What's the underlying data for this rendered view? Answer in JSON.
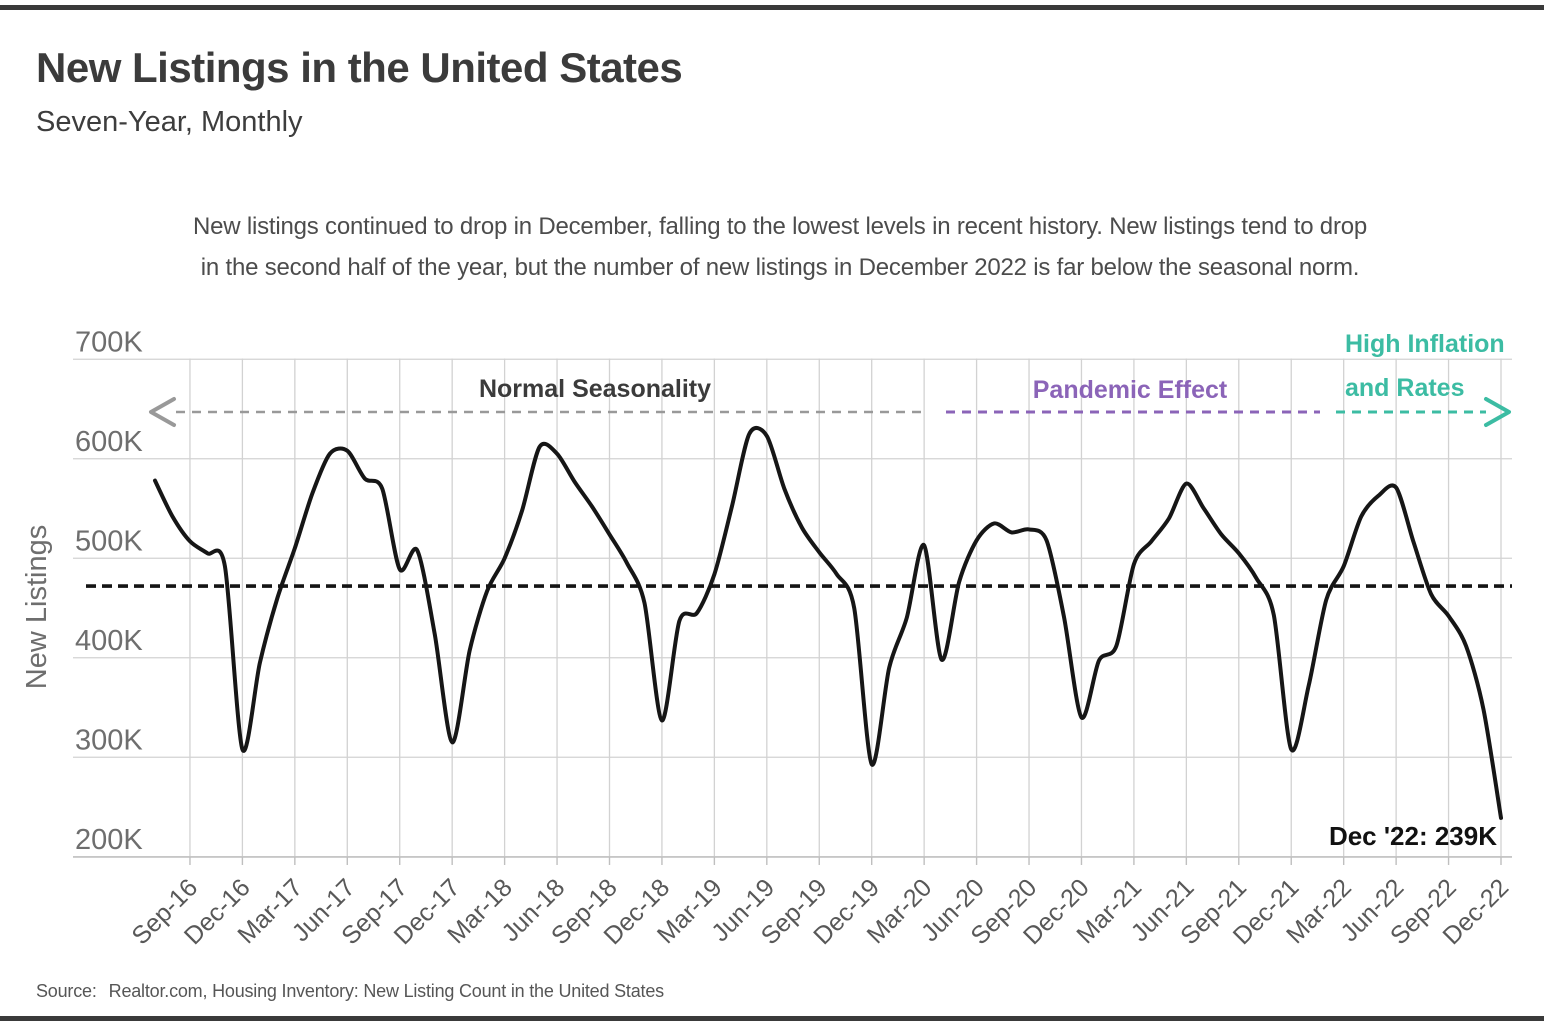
{
  "header": {
    "title": "New Listings in the United States",
    "subtitle": "Seven-Year, Monthly",
    "description_line1": "New listings continued to drop in December, falling to the lowest levels in recent history. New listings tend to drop",
    "description_line2": "in the second half of the year, but the number of new listings in December 2022 is far below the seasonal norm."
  },
  "source": {
    "prefix": "Source:",
    "text": "Realtor.com, Housing Inventory: New Listing Count in the United States"
  },
  "colors": {
    "line": "#161616",
    "grid": "#d2d2d2",
    "axis": "#bfbfbf",
    "teal": "#3cbca3",
    "purple": "#8b64b8",
    "gray_annotation": "#999999",
    "text_dark": "#3b3b3b",
    "text_muted": "#6e6e6e",
    "reference": "#141414"
  },
  "chart_data": {
    "type": "line",
    "title": "New Listings in the United States",
    "subtitle": "Seven-Year, Monthly",
    "xlabel": "",
    "ylabel": "New Listings",
    "unit": "thousands",
    "grid": true,
    "legend": false,
    "ylim": [
      200,
      700
    ],
    "y_ticks": [
      {
        "value": 700,
        "label": "700K"
      },
      {
        "value": 600,
        "label": "600K"
      },
      {
        "value": 500,
        "label": "500K"
      },
      {
        "value": 400,
        "label": "400K"
      },
      {
        "value": 300,
        "label": "300K"
      },
      {
        "value": 200,
        "label": "200K"
      }
    ],
    "x_tick_labels": [
      "Sep-16",
      "Dec-16",
      "Mar-17",
      "Jun-17",
      "Sep-17",
      "Dec-17",
      "Mar-18",
      "Jun-18",
      "Sep-18",
      "Dec-18",
      "Mar-19",
      "Jun-19",
      "Sep-19",
      "Dec-19",
      "Mar-20",
      "Jun-20",
      "Sep-20",
      "Dec-20",
      "Mar-21",
      "Jun-21",
      "Sep-21",
      "Dec-21",
      "Mar-22",
      "Jun-22",
      "Sep-22",
      "Dec-22"
    ],
    "series": [
      {
        "name": "New listings (monthly)",
        "x_start": "Jul-2016",
        "x_end": "Dec-2022",
        "unit": "thousands",
        "values": [
          578,
          542,
          517,
          505,
          492,
          308,
          395,
          460,
          510,
          565,
          605,
          608,
          580,
          570,
          489,
          508,
          424,
          315,
          407,
          467,
          500,
          548,
          612,
          605,
          577,
          552,
          524,
          495,
          455,
          337,
          437,
          445,
          484,
          552,
          625,
          623,
          570,
          531,
          506,
          484,
          450,
          293,
          390,
          440,
          513,
          398,
          476,
          518,
          535,
          526,
          529,
          518,
          441,
          340,
          397,
          412,
          494,
          517,
          540,
          575,
          550,
          524,
          505,
          480,
          443,
          308,
          372,
          458,
          492,
          542,
          563,
          571,
          516,
          464,
          442,
          412,
          348,
          239
        ]
      }
    ],
    "reference_line": {
      "value": 472,
      "unit": "thousands",
      "style": "dashed"
    },
    "annotations": {
      "normal_seasonality": {
        "label": "Normal Seasonality",
        "color": "#3b3b3b",
        "arrow": "left"
      },
      "pandemic_effect": {
        "label": "Pandemic Effect",
        "color": "#8b64b8"
      },
      "high_inflation": {
        "label_line1": "High Inflation",
        "label_line2": "and Rates",
        "color": "#3cbca3",
        "arrow": "right"
      }
    },
    "end_label": "Dec '22: 239K"
  }
}
